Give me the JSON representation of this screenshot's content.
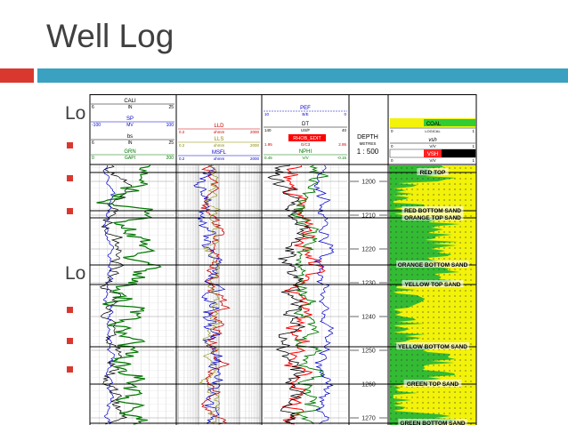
{
  "slide": {
    "title": "Well Log",
    "bullet_frag_1": "Lo",
    "bullet_frag_2": "Lo"
  },
  "header": {
    "track1": {
      "cali": {
        "name": "CALI",
        "unit": "IN",
        "min": "6",
        "max": "25",
        "color": "#000000"
      },
      "sp": {
        "name": "SP",
        "unit": "MV",
        "min": "-100",
        "max": "100",
        "color": "#0000cc"
      },
      "bs": {
        "name": "bs",
        "unit": "IN",
        "min": "6",
        "max": "25",
        "color": "#000000"
      },
      "grn": {
        "name": "GRN",
        "unit": "GAPI",
        "min": "0",
        "max": "200",
        "color": "#007700"
      }
    },
    "track2": {
      "lld": {
        "name": "LLD",
        "unit": "ohmm",
        "min": "0.2",
        "max": "2000",
        "color": "#cc0000"
      },
      "lls": {
        "name": "LLS",
        "unit": "ohmm",
        "min": "0.2",
        "max": "2000",
        "color": "#888800"
      },
      "msfl": {
        "name": "MSFL",
        "unit": "ohmm",
        "min": "0.2",
        "max": "2000",
        "color": "#0000cc"
      }
    },
    "track3": {
      "pef": {
        "name": "PEF",
        "unit": "B/E",
        "min": "10",
        "max": "0",
        "color": "#0000cc"
      },
      "dt": {
        "name": "DT",
        "unit": "US/F",
        "min": "140",
        "max": "40",
        "color": "#000000"
      },
      "rhob": {
        "name": "RHOB_EDIT",
        "unit": "G/C3",
        "min": "1.95",
        "max": "2.95",
        "color": "#ffffff",
        "bg": "#ff0000"
      },
      "nphi": {
        "name": "NPHI",
        "unit": "V/V",
        "min": "0.45",
        "max": "-0.15",
        "color": "#007700"
      }
    },
    "depth": {
      "label": "DEPTH",
      "unit": "METRES",
      "scale": "1 : 500"
    },
    "track5": {
      "coal": {
        "name": "COAL",
        "unit": "LOGICAL",
        "min": "0",
        "max": "1",
        "bg": "#33cc33"
      },
      "vsh": {
        "name": "vsh",
        "unit": "V/V",
        "min": "0",
        "max": "1"
      },
      "vsh2": {
        "name": "VSH",
        "unit": "V/V",
        "min": "0",
        "max": "1",
        "bg": "#ff2222"
      }
    }
  },
  "depths": [
    "1200",
    "1210",
    "1220",
    "1230",
    "1240",
    "1250",
    "1260",
    "1270"
  ],
  "tops": [
    {
      "name": "RED TOP"
    },
    {
      "name": "RED BOTTOM SAND"
    },
    {
      "name": "ORANGE TOP SAND"
    },
    {
      "name": "ORANGE BOTTOM SAND"
    },
    {
      "name": "YELLOW TOP SAND"
    },
    {
      "name": "YELLOW BOTTOM SAND"
    },
    {
      "name": "GREEN TOP SAND"
    },
    {
      "name": "GREEN BOTTOM SAND"
    }
  ],
  "colors": {
    "accent_red": "#d9382f",
    "accent_blue": "#3aa1c1",
    "sand_yellow": "#f2f20a",
    "shale_green": "#33bb33"
  }
}
